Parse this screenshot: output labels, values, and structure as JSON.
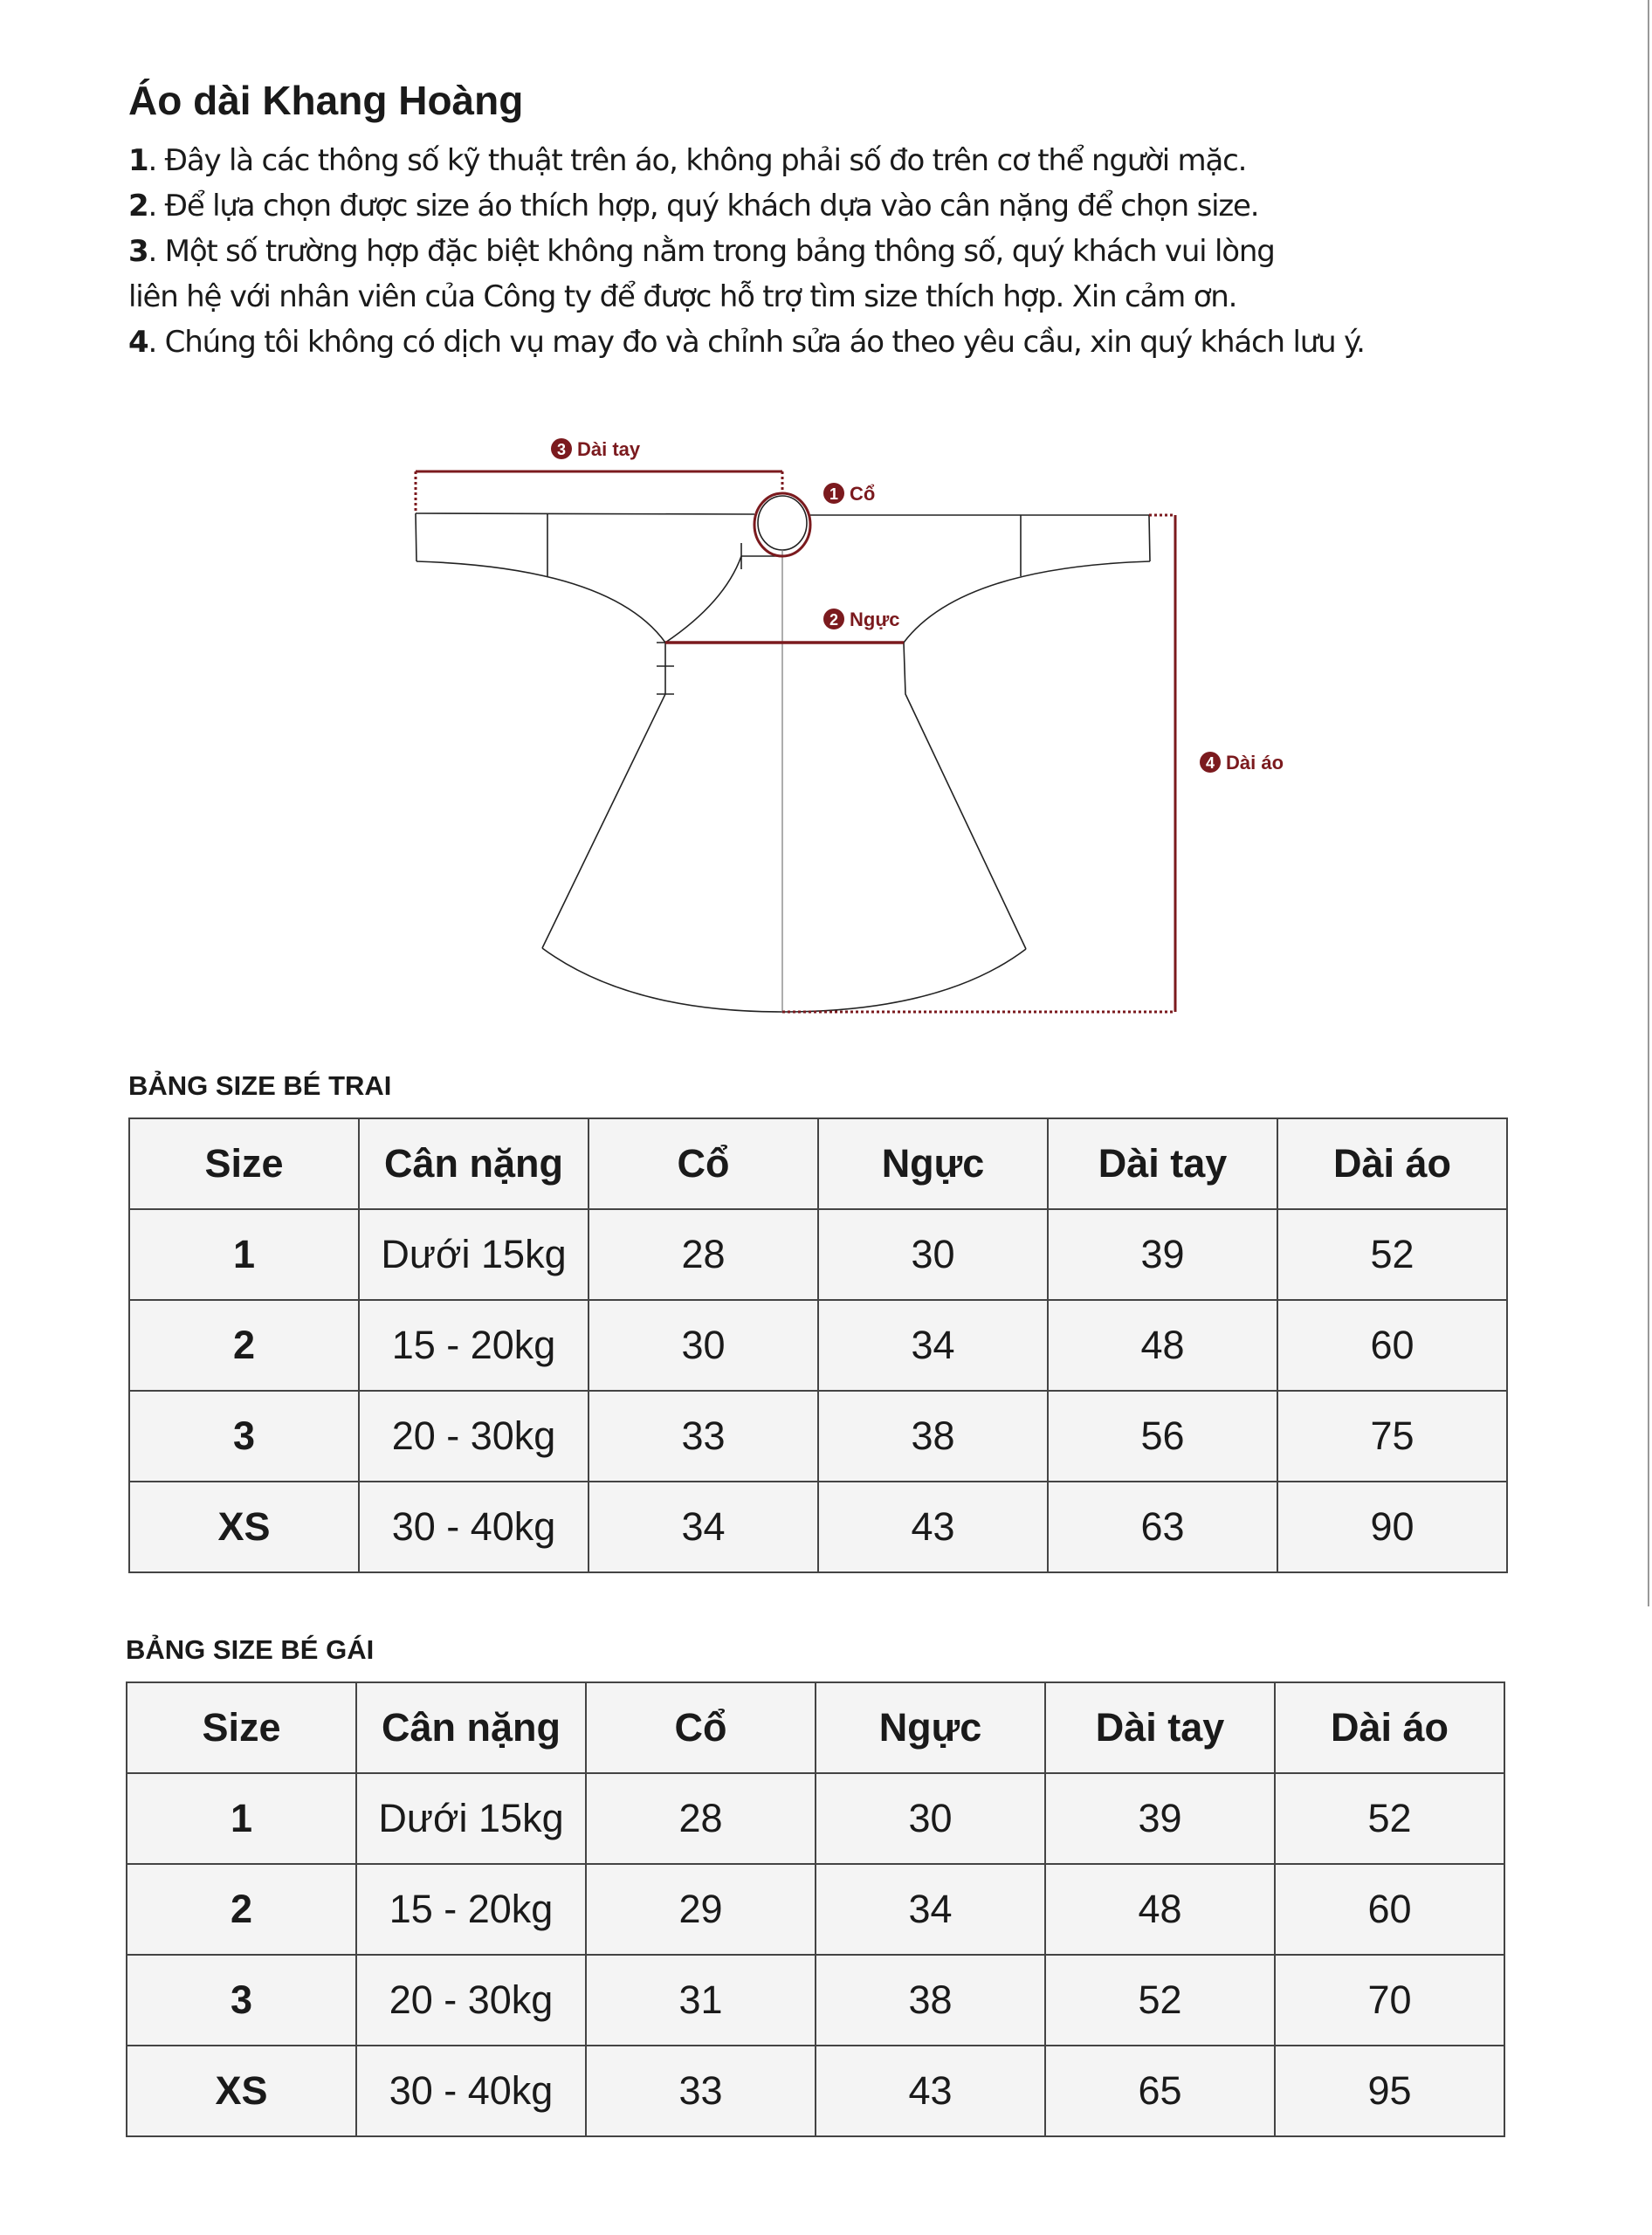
{
  "title": "Áo dài Khang Hoàng",
  "notes": [
    {
      "num": "1",
      "text": ". Đây là các thông số kỹ thuật trên áo, không phải số đo trên cơ thể người mặc."
    },
    {
      "num": "2",
      "text": ". Để lựa chọn được size áo thích hợp, quý khách dựa vào cân nặng để chọn size."
    },
    {
      "num": "3",
      "text": ". Một số trường hợp đặc biệt không nằm trong bảng thông số, quý khách vui lòng"
    },
    {
      "num": "",
      "text": "liên hệ với nhân viên của Công ty để được hỗ trợ tìm size thích hợp. Xin cảm ơn."
    },
    {
      "num": "4",
      "text": ". Chúng tôi không có dịch vụ may đo và chỉnh sửa áo theo yêu cầu, xin quý khách lưu ý."
    }
  ],
  "diagram": {
    "accent_color": "#7b1a1e",
    "labels": [
      {
        "num": "1",
        "text": "Cổ"
      },
      {
        "num": "2",
        "text": "Ngực"
      },
      {
        "num": "3",
        "text": "Dài tay"
      },
      {
        "num": "4",
        "text": "Dài áo"
      }
    ]
  },
  "tables": [
    {
      "heading": "BẢNG SIZE BÉ TRAI",
      "columns": [
        "Size",
        "Cân nặng",
        "Cổ",
        "Ngực",
        "Dài tay",
        "Dài áo"
      ],
      "rows": [
        [
          "1",
          "Dưới 15kg",
          "28",
          "30",
          "39",
          "52"
        ],
        [
          "2",
          "15 - 20kg",
          "30",
          "34",
          "48",
          "60"
        ],
        [
          "3",
          "20 - 30kg",
          "33",
          "38",
          "56",
          "75"
        ],
        [
          "XS",
          "30 - 40kg",
          "34",
          "43",
          "63",
          "90"
        ]
      ]
    },
    {
      "heading": "BẢNG SIZE BÉ GÁI",
      "columns": [
        "Size",
        "Cân nặng",
        "Cổ",
        "Ngực",
        "Dài tay",
        "Dài áo"
      ],
      "rows": [
        [
          "1",
          "Dưới 15kg",
          "28",
          "30",
          "39",
          "52"
        ],
        [
          "2",
          "15 - 20kg",
          "29",
          "34",
          "48",
          "60"
        ],
        [
          "3",
          "20 - 30kg",
          "31",
          "38",
          "52",
          "70"
        ],
        [
          "XS",
          "30 - 40kg",
          "33",
          "43",
          "65",
          "95"
        ]
      ]
    }
  ]
}
